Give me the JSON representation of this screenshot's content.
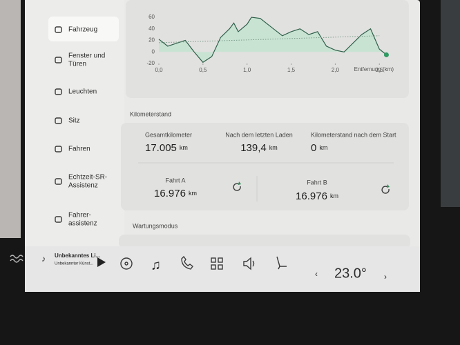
{
  "sidebar": {
    "items": [
      {
        "lines": [
          "Fahrzeug"
        ]
      },
      {
        "lines": [
          "Fenster und",
          "Türen"
        ]
      },
      {
        "lines": [
          "Leuchten"
        ]
      },
      {
        "lines": [
          "Sitz"
        ]
      },
      {
        "lines": [
          "Fahren"
        ]
      },
      {
        "lines": [
          "Echtzeit-SR-",
          "Assistenz"
        ]
      },
      {
        "lines": [
          "Fahrer-",
          "assistenz"
        ]
      }
    ]
  },
  "chart_data": {
    "type": "area",
    "x_label": "Entfernung (km)",
    "x": [
      0,
      0.1,
      0.2,
      0.3,
      0.4,
      0.5,
      0.6,
      0.7,
      0.8,
      0.85,
      0.9,
      1.0,
      1.05,
      1.15,
      1.3,
      1.4,
      1.5,
      1.6,
      1.7,
      1.8,
      1.9,
      2.0,
      2.1,
      2.2,
      2.3,
      2.4,
      2.5,
      2.58
    ],
    "series": [
      {
        "color": "#2f5f4a",
        "fill": "#c9e3d3",
        "values": [
          22,
          10,
          15,
          20,
          0,
          -18,
          -8,
          25,
          40,
          50,
          35,
          48,
          60,
          58,
          40,
          28,
          35,
          40,
          30,
          35,
          10,
          3,
          0,
          15,
          30,
          40,
          5,
          -5
        ]
      }
    ],
    "reference": {
      "x": [
        0,
        2.5
      ],
      "values": [
        16,
        28
      ],
      "color": "#7a9a88"
    },
    "xlim": [
      0,
      2.6
    ],
    "ylim": [
      -20,
      60
    ],
    "xticks": [
      {
        "value": 0,
        "label": "0,0"
      },
      {
        "value": 0.5,
        "label": "0,5"
      },
      {
        "value": 1,
        "label": "1,0"
      },
      {
        "value": 1.5,
        "label": "1,5"
      },
      {
        "value": 2,
        "label": "2,0"
      },
      {
        "value": 2.5,
        "label": "2,5"
      }
    ],
    "yticks": [
      60,
      40,
      20,
      0,
      -20
    ]
  },
  "odometer": {
    "title": "Kilometerstand",
    "top": [
      {
        "label": "Gesamtkilometer",
        "value": "17.005",
        "unit": "km"
      },
      {
        "label": "Nach dem letzten Laden",
        "value": "139,4",
        "unit": "km"
      },
      {
        "label": "Kilometerstand nach dem Start",
        "value": "0",
        "unit": "km"
      }
    ],
    "trips": [
      {
        "label": "Fahrt A",
        "value": "16.976",
        "unit": "km"
      },
      {
        "label": "Fahrt B",
        "value": "16.976",
        "unit": "km"
      }
    ]
  },
  "maintenance": {
    "title": "Wartungsmodus"
  },
  "taskbar": {
    "media_title": "Unbekanntes Li...",
    "media_artist": "Unbekannter Künst...",
    "temperature": "23.0°"
  }
}
